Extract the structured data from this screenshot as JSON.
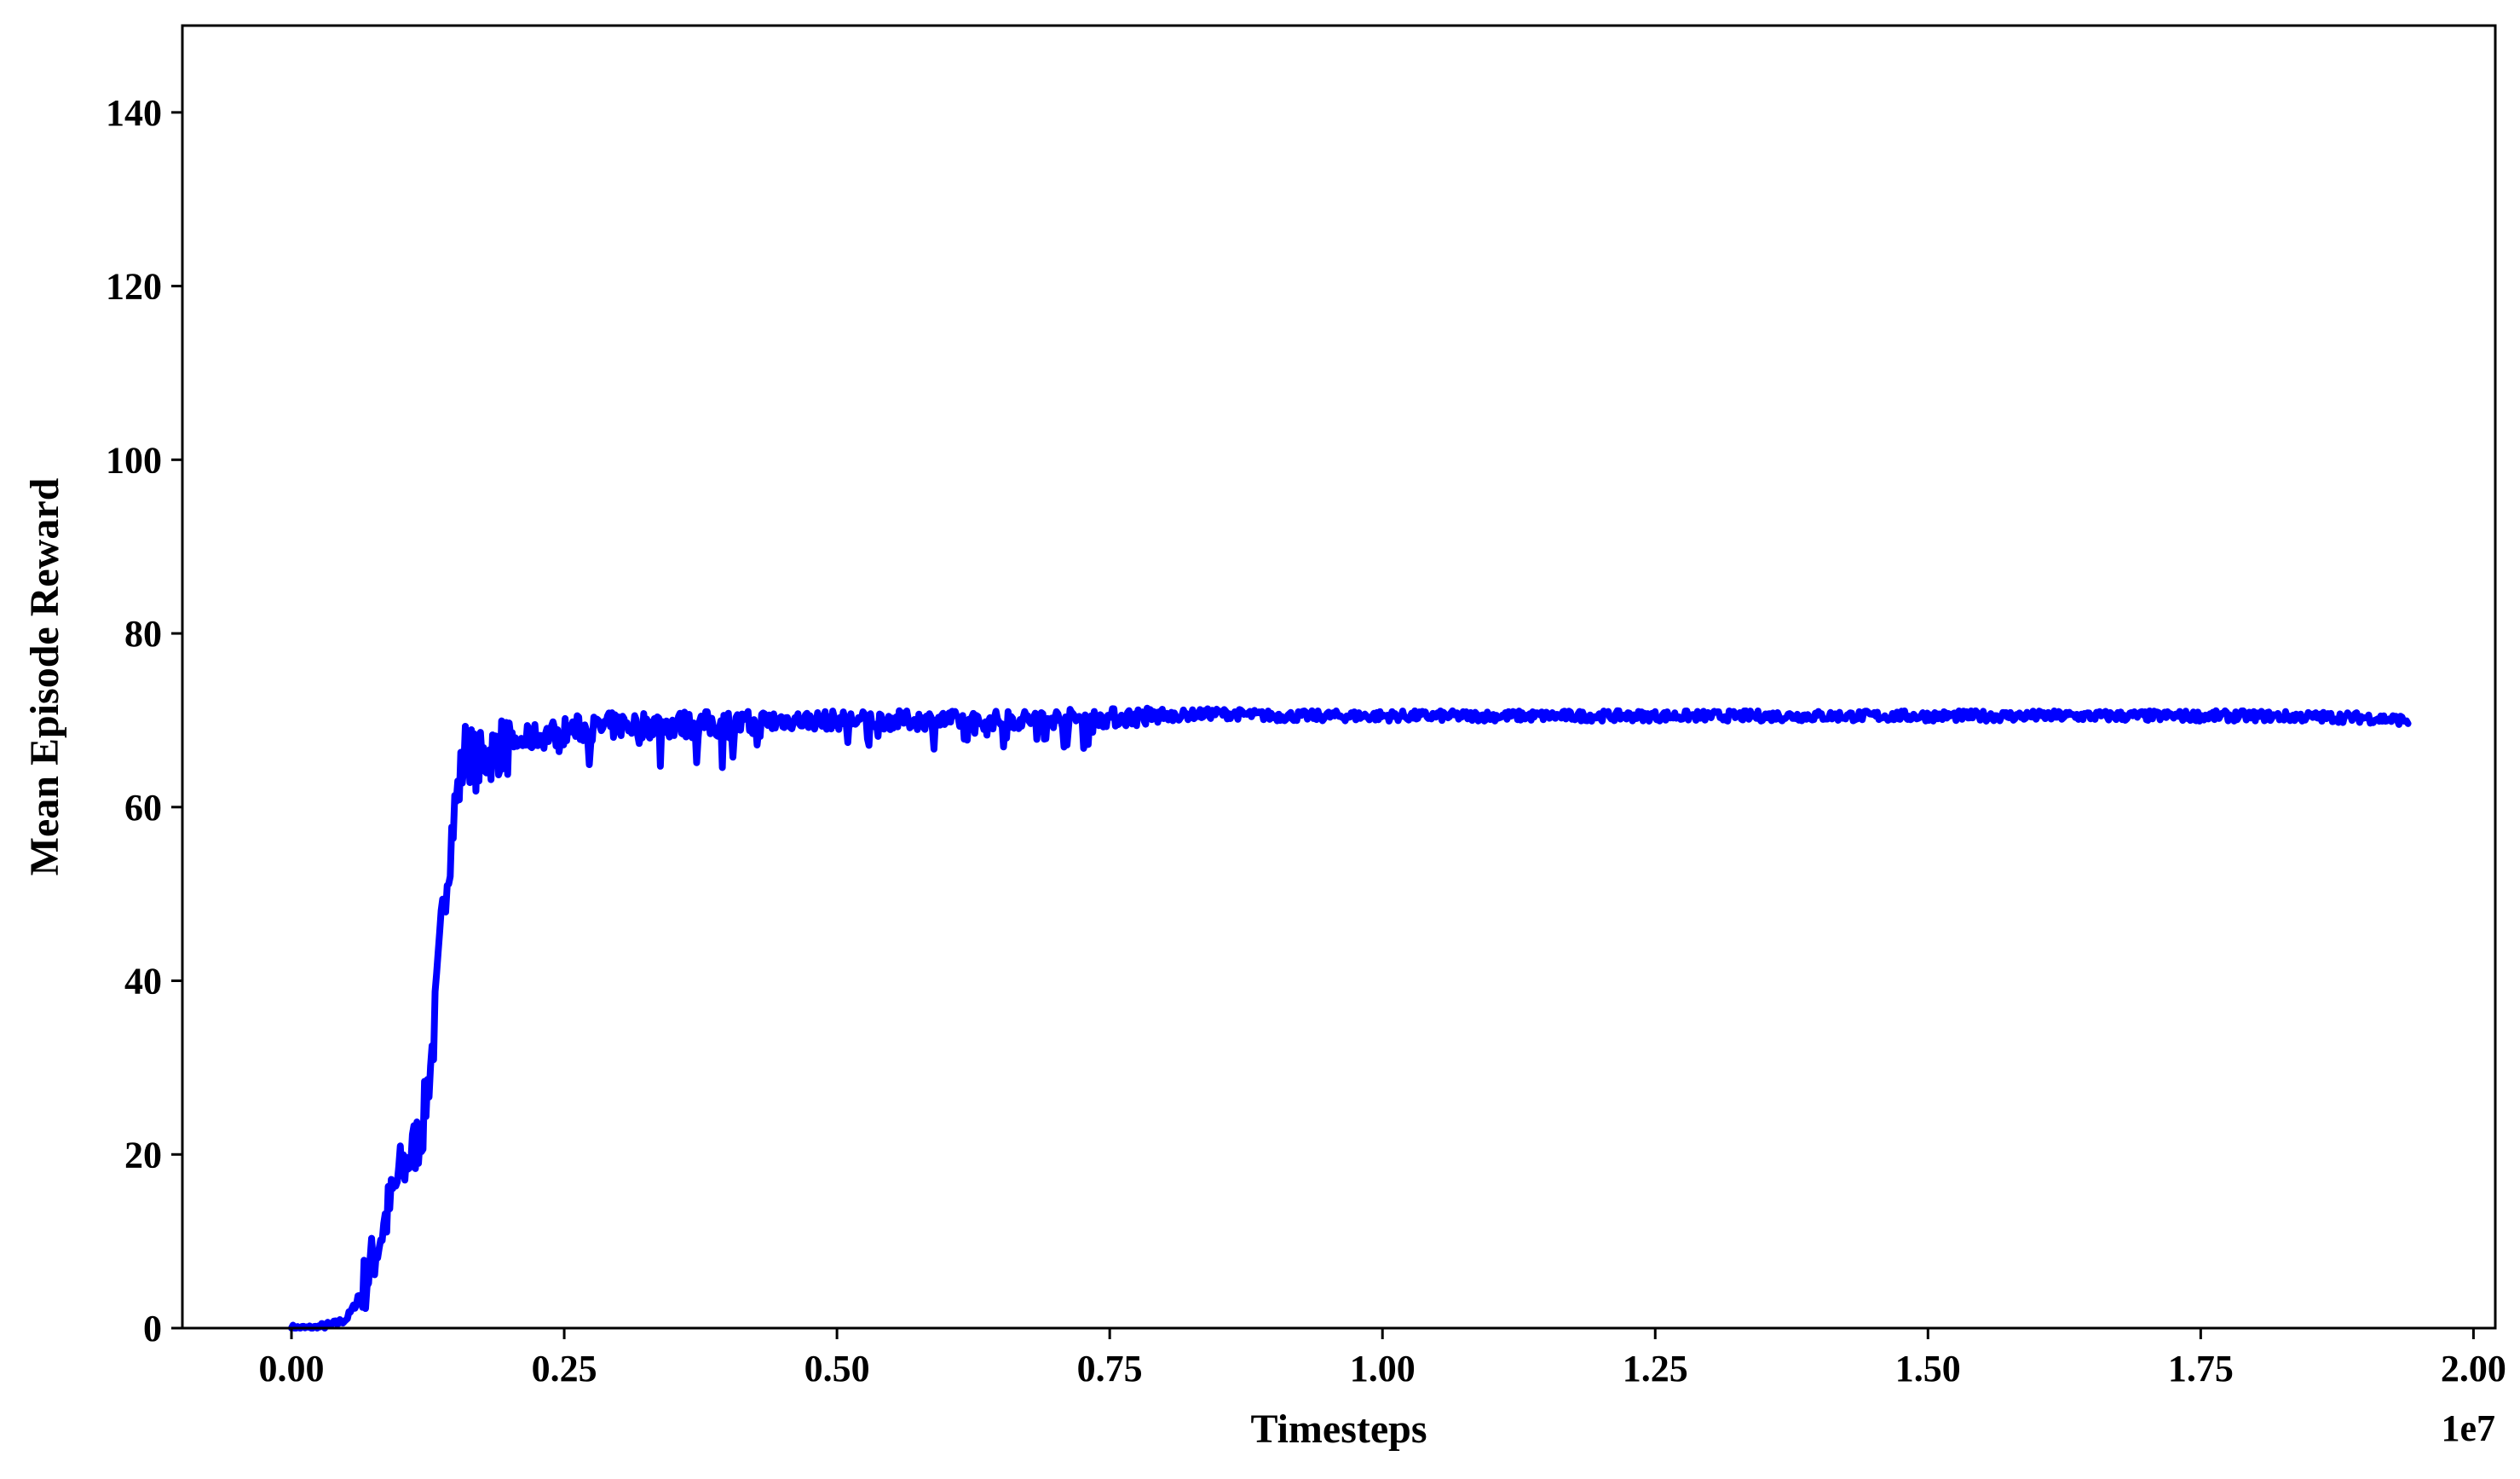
{
  "chart_data": {
    "type": "line",
    "title": "",
    "xlabel": "Timesteps",
    "ylabel": "Mean Episode Reward",
    "x_offset_label": "1e7",
    "xlim": [
      -0.1,
      2.02
    ],
    "ylim": [
      0,
      150
    ],
    "x_ticks": [
      0.0,
      0.25,
      0.5,
      0.75,
      1.0,
      1.25,
      1.5,
      1.75,
      2.0
    ],
    "x_tick_labels": [
      "0.00",
      "0.25",
      "0.50",
      "0.75",
      "1.00",
      "1.25",
      "1.50",
      "1.75",
      "2.00"
    ],
    "y_ticks": [
      0,
      20,
      40,
      60,
      80,
      100,
      120,
      140
    ],
    "y_tick_labels": [
      "0",
      "20",
      "40",
      "60",
      "80",
      "100",
      "120",
      "140"
    ],
    "grid": false,
    "legend": "none",
    "colors": {
      "line": "#0000ff",
      "axes": "#000000",
      "background": "#ffffff"
    },
    "series": [
      {
        "x": [
          0.0,
          0.02,
          0.04,
          0.05,
          0.06,
          0.07,
          0.08,
          0.09,
          0.1,
          0.11,
          0.12,
          0.13,
          0.14,
          0.15,
          0.16,
          0.17,
          0.18,
          0.19,
          0.2,
          0.22,
          0.24,
          0.26,
          0.28,
          0.3,
          0.33,
          0.36,
          0.39,
          0.42,
          0.45,
          0.5,
          0.55,
          0.6,
          0.65,
          0.7,
          0.75,
          0.8,
          0.85,
          0.9,
          1.0,
          1.1,
          1.2,
          1.3,
          1.4,
          1.5,
          1.6,
          1.7,
          1.8,
          1.9,
          1.94
        ],
        "y": [
          0,
          0,
          0.5,
          1,
          3,
          6,
          10,
          14,
          18,
          20,
          23,
          33,
          50,
          60,
          67,
          65,
          66,
          67,
          67,
          68,
          68.5,
          69,
          69,
          69.5,
          69.5,
          69.5,
          69.5,
          69.5,
          70,
          70,
          70,
          70,
          70,
          70.2,
          70.3,
          70.5,
          70.8,
          70.5,
          70.5,
          70.5,
          70.5,
          70.5,
          70.5,
          70.5,
          70.5,
          70.5,
          70.5,
          70.3,
          70
        ]
      }
    ]
  }
}
